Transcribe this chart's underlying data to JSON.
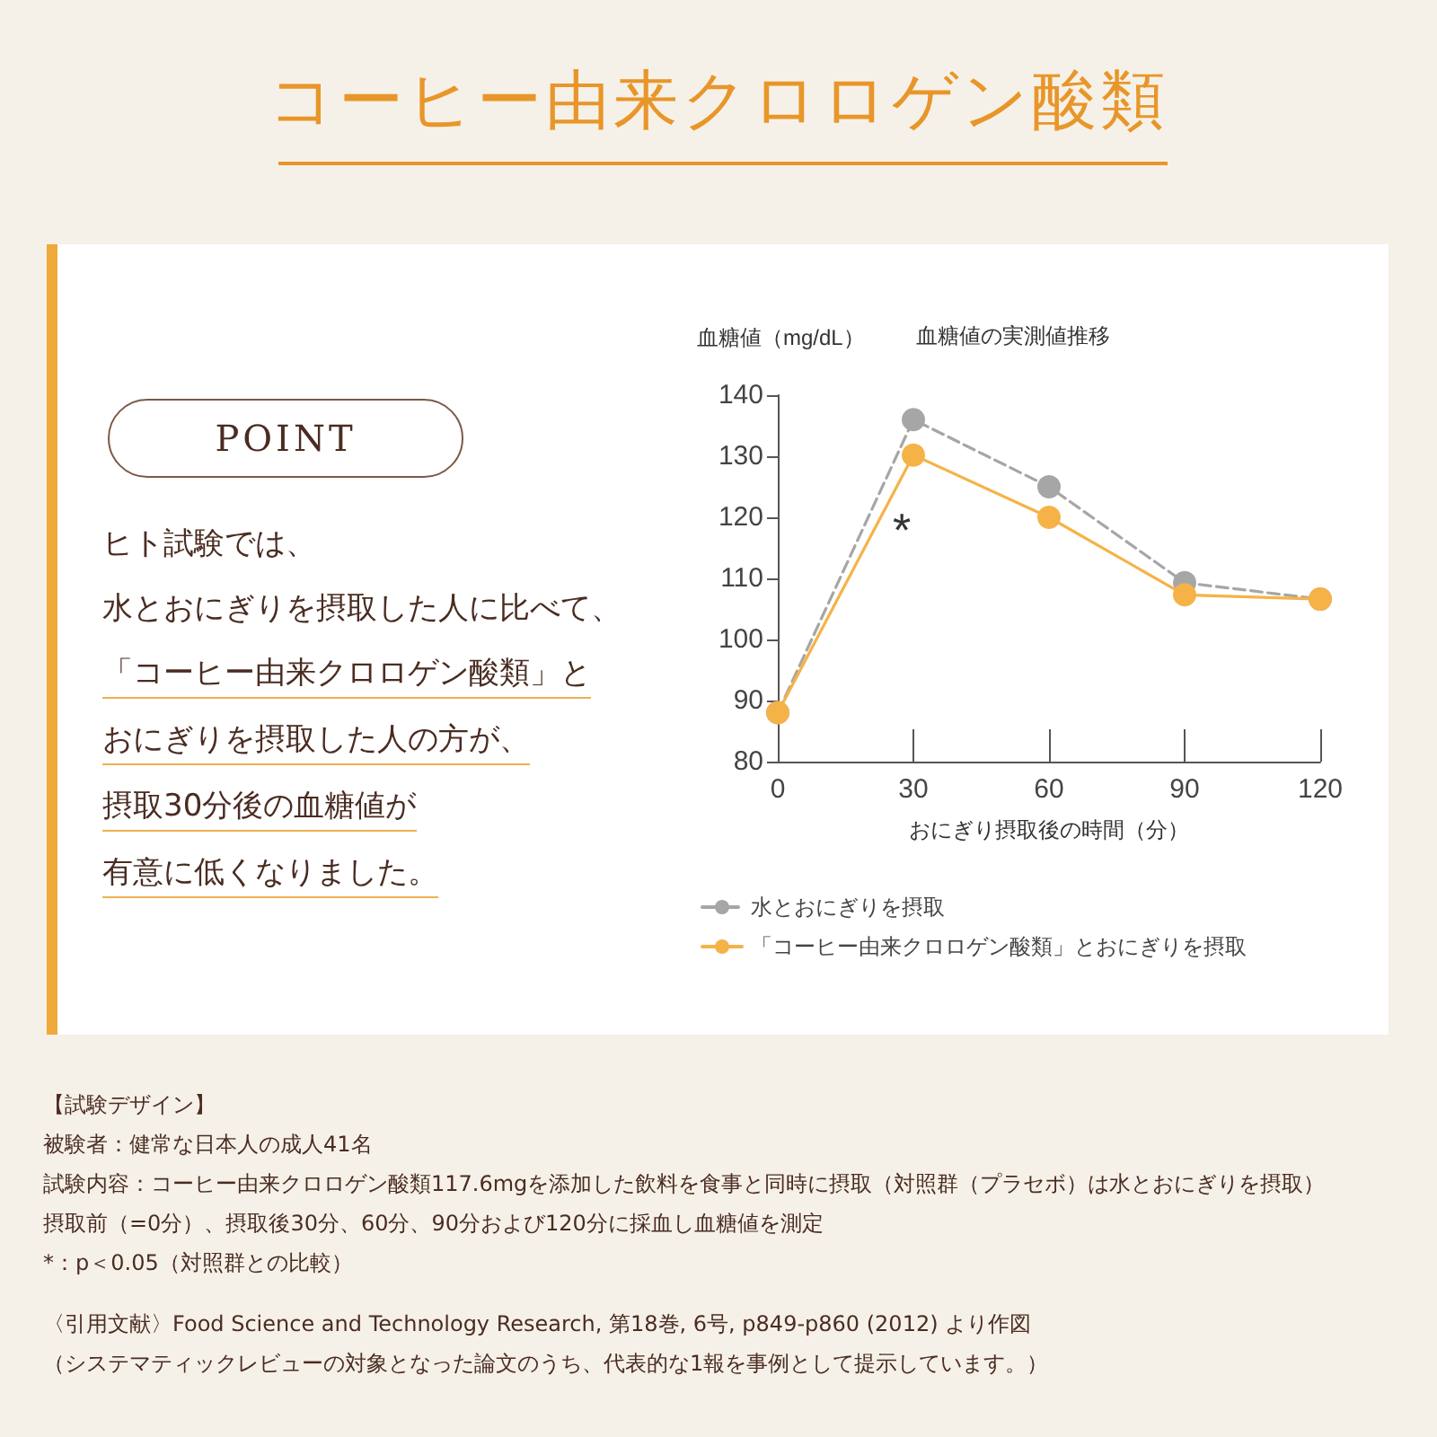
{
  "chart_data": {
    "type": "line",
    "title": "コーヒー由来クロロゲン酸類",
    "subtitle": "血糖値の実測値推移",
    "ylabel": "血糖値（mg/dL）",
    "xlabel": "おにぎり摂取後の時間（分）",
    "x": [
      0,
      30,
      60,
      90,
      120
    ],
    "series": [
      {
        "name": "水とおにぎりを摂取",
        "color": "#a6a6a6",
        "line_style": "dashed",
        "values": [
          88,
          136,
          125,
          109.3,
          106.6
        ]
      },
      {
        "name": "「コーヒー由来クロロゲン酸類」とおにぎりを摂取",
        "color": "#f5b347",
        "line_style": "solid",
        "values": [
          88,
          130.2,
          120,
          107.3,
          106.6
        ]
      }
    ],
    "xlim": [
      0,
      120
    ],
    "xticks": [
      0,
      30,
      60,
      90,
      120
    ],
    "ylim": [
      80,
      140
    ],
    "yticks": [
      80,
      90,
      100,
      110,
      120,
      130,
      140
    ],
    "grid": false,
    "legend": "bottom left",
    "marker": "circle",
    "annotations": [
      "*",
      "POINT",
      "ヒト試験では、",
      "水とおにぎりを摂取した人に比べて、",
      "「コーヒー由来クロロゲン酸類」と",
      "おにぎりを摂取した人の方が、",
      "摂取30分後の血糖値が",
      "有意に低くなりました。",
      "【試験デザイン】",
      "被験者：健常な日本人の成人41名",
      "試験内容：コーヒー由来クロロゲン酸類117.6mgを添加した飲料を食事と同時に摂取（対照群（プラセボ）は水とおにぎりを摂取）",
      "摂取前（=0分）、摂取後30分、60分、90分および120分に採血し血糖値を測定",
      "*：p＜0.05（対照群との比較）",
      "〈引用文献〉Food Science and Technology Research, 第18巻, 6号, p849-p860 (2012) より作図",
      "（システマティックレビューの対象となった論文のうち、代表的な1報を事例として提示しています。）"
    ]
  }
}
